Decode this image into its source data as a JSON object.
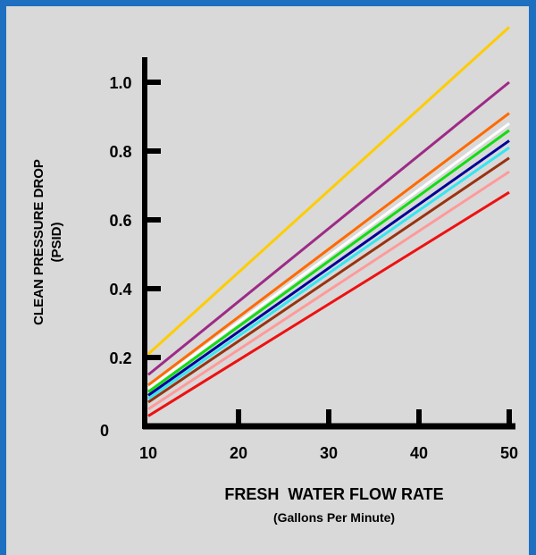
{
  "chart_data": {
    "type": "line",
    "xlabel": "FRESH  WATER FLOW RATE",
    "xlabel_sub": "(Gallons Per Minute)",
    "ylabel": "CLEAN  PRESSURE  DROP",
    "ylabel_sub": "(PSID)",
    "xlim": [
      10,
      50
    ],
    "ylim": [
      0,
      1.1
    ],
    "x_ticks": [
      "10",
      "20",
      "30",
      "40",
      "50"
    ],
    "y_ticks": [
      "0",
      "0.2",
      "0.4",
      "0.6",
      "0.8",
      "1.0"
    ],
    "x": [
      10,
      50
    ],
    "series": [
      {
        "color": "#ffcc00",
        "values": [
          0.21,
          1.16
        ]
      },
      {
        "color": "#9e2a86",
        "values": [
          0.15,
          1.0
        ]
      },
      {
        "color": "#ff6a00",
        "values": [
          0.12,
          0.91
        ]
      },
      {
        "color": "#ffffff",
        "values": [
          0.11,
          0.88
        ]
      },
      {
        "color": "#11dd11",
        "values": [
          0.1,
          0.86
        ]
      },
      {
        "color": "#000099",
        "values": [
          0.09,
          0.83
        ]
      },
      {
        "color": "#33e6f0",
        "values": [
          0.08,
          0.81
        ]
      },
      {
        "color": "#993311",
        "values": [
          0.07,
          0.78
        ]
      },
      {
        "color": "#ff9a9a",
        "values": [
          0.05,
          0.74
        ]
      },
      {
        "color": "#ee1111",
        "values": [
          0.03,
          0.68
        ]
      }
    ]
  },
  "colors": {
    "border": "#1e6fc0",
    "panel": "#d9d9d9"
  }
}
